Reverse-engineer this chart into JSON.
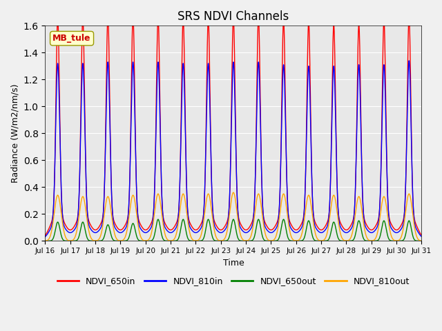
{
  "title": "SRS NDVI Channels",
  "xlabel": "Time",
  "ylabel": "Radiance (W/m2/nm/s)",
  "ylim": [
    0.0,
    1.6
  ],
  "site_label": "MB_tule",
  "legend": [
    "NDVI_650in",
    "NDVI_810in",
    "NDVI_650out",
    "NDVI_810out"
  ],
  "colors": [
    "red",
    "blue",
    "green",
    "orange"
  ],
  "background_color": "#e8e8e8",
  "xtick_labels": [
    "Jul 16",
    "Jul 17",
    "Jul 18",
    "Jul 19",
    "Jul 20",
    "Jul 21",
    "Jul 22",
    "Jul 23",
    "Jul 24",
    "Jul 25",
    "Jul 26",
    "Jul 27",
    "Jul 28",
    "Jul 29",
    "Jul 30",
    "Jul 31"
  ],
  "n_days": 15,
  "start_day": 16,
  "peaks_650in": [
    1.46,
    1.46,
    1.47,
    1.47,
    1.46,
    1.45,
    1.45,
    1.46,
    1.46,
    1.44,
    1.43,
    1.41,
    1.41,
    1.44,
    1.47
  ],
  "peaks_810in": [
    1.17,
    1.17,
    1.18,
    1.18,
    1.18,
    1.17,
    1.17,
    1.18,
    1.18,
    1.16,
    1.15,
    1.15,
    1.16,
    1.16,
    1.19
  ],
  "peaks_650out": [
    0.14,
    0.14,
    0.12,
    0.13,
    0.16,
    0.16,
    0.16,
    0.16,
    0.16,
    0.16,
    0.15,
    0.14,
    0.15,
    0.15,
    0.15
  ],
  "peaks_810out": [
    0.34,
    0.33,
    0.33,
    0.34,
    0.35,
    0.35,
    0.35,
    0.36,
    0.35,
    0.35,
    0.34,
    0.34,
    0.33,
    0.33,
    0.35
  ]
}
